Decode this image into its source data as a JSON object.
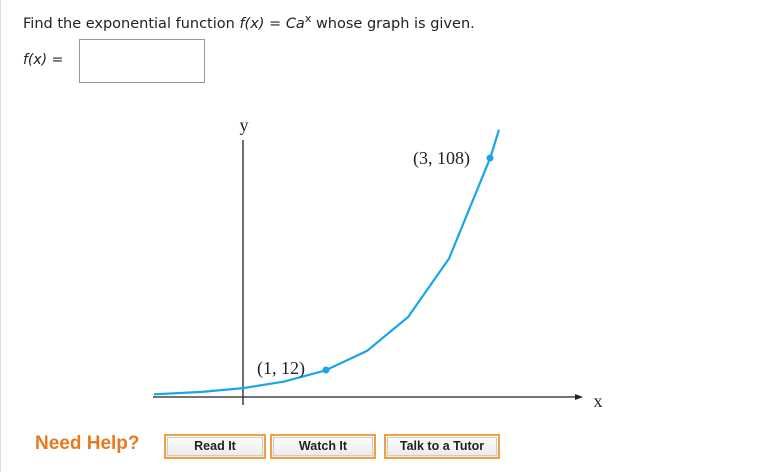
{
  "question": {
    "before": "Find the exponential function",
    "func": "f(x)",
    "eq": "=",
    "base": "Ca",
    "exp": "x",
    "after": "whose graph is given."
  },
  "answer": {
    "label": "f(x)",
    "eq": "="
  },
  "graph": {
    "y_label": "y",
    "x_label": "x",
    "point_1": "(1, 12)",
    "point_2": "(3, 108)"
  },
  "help": {
    "title": "Need Help?",
    "buttons": [
      "Read It",
      "Watch It",
      "Talk to a Tutor"
    ]
  }
}
